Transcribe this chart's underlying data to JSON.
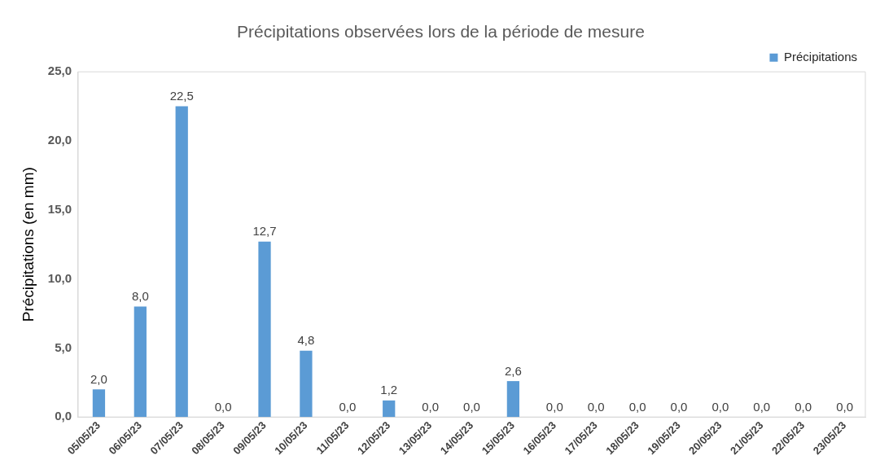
{
  "chart_data": {
    "type": "bar",
    "title": "Précipitations observées lors de la période de mesure",
    "ylabel": "Précipitations (en mm)",
    "categories": [
      "05/05/23",
      "06/05/23",
      "07/05/23",
      "08/05/23",
      "09/05/23",
      "10/05/23",
      "11/05/23",
      "12/05/23",
      "13/05/23",
      "14/05/23",
      "15/05/23",
      "16/05/23",
      "17/05/23",
      "18/05/23",
      "19/05/23",
      "20/05/23",
      "21/05/23",
      "22/05/23",
      "23/05/23"
    ],
    "series": [
      {
        "name": "Précipitations",
        "color": "#5b9bd5",
        "values": [
          2.0,
          8.0,
          22.5,
          0.0,
          12.7,
          4.8,
          0.0,
          1.2,
          0.0,
          0.0,
          2.6,
          0.0,
          0.0,
          0.0,
          0.0,
          0.0,
          0.0,
          0.0,
          0.0
        ],
        "value_labels": [
          "2,0",
          "8,0",
          "22,5",
          "0,0",
          "12,7",
          "4,8",
          "0,0",
          "1,2",
          "0,0",
          "0,0",
          "2,6",
          "0,0",
          "0,0",
          "0,0",
          "0,0",
          "0,0",
          "0,0",
          "0,0",
          "0,0"
        ]
      }
    ],
    "ylim": [
      0,
      25
    ],
    "yticks": [
      {
        "value": 0,
        "label": "0,0"
      },
      {
        "value": 5,
        "label": "5,0"
      },
      {
        "value": 10,
        "label": "10,0"
      },
      {
        "value": 15,
        "label": "15,0"
      },
      {
        "value": 20,
        "label": "20,0"
      },
      {
        "value": 25,
        "label": "25,0"
      }
    ],
    "grid": false,
    "legend": "top right"
  }
}
